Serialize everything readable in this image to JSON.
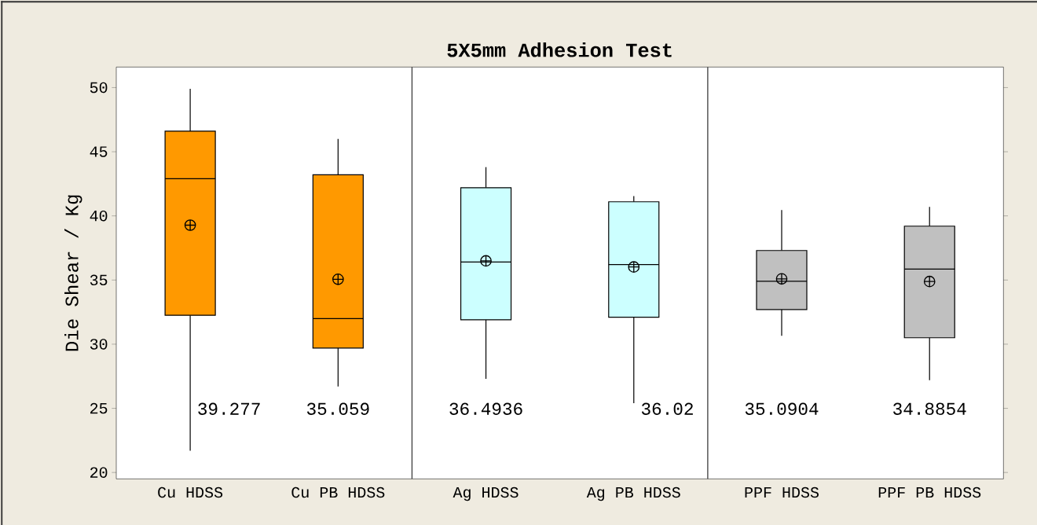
{
  "chart_data": {
    "type": "box",
    "title": "5X5mm Adhesion Test",
    "ylabel": "Die Shear / Kg",
    "categories": [
      "Cu HDSS",
      "Cu PB HDSS",
      "Ag HDSS",
      "Ag PB HDSS",
      "PPF HDSS",
      "PPF PB HDSS"
    ],
    "boxes": [
      {
        "low": 21.7,
        "q1": 32.25,
        "median": 42.9,
        "q3": 46.6,
        "high": 49.9,
        "mean": 39.277
      },
      {
        "low": 26.7,
        "q1": 29.7,
        "median": 32.0,
        "q3": 43.2,
        "high": 46.0,
        "mean": 35.059
      },
      {
        "low": 27.3,
        "q1": 31.9,
        "median": 36.4,
        "q3": 42.2,
        "high": 43.8,
        "mean": 36.4936
      },
      {
        "low": 25.4,
        "q1": 32.1,
        "median": 36.2,
        "q3": 41.1,
        "high": 41.55,
        "mean": 36.02
      },
      {
        "low": 30.65,
        "q1": 32.7,
        "median": 34.9,
        "q3": 37.3,
        "high": 40.45,
        "mean": 35.0904
      },
      {
        "low": 27.2,
        "q1": 30.5,
        "median": 35.85,
        "q3": 39.2,
        "high": 40.7,
        "mean": 34.8854
      }
    ],
    "colors": [
      "#ff9900",
      "#ff9900",
      "#ccffff",
      "#ccffff",
      "#c0c0c0",
      "#c0c0c0"
    ],
    "marker": "circle",
    "ylim": [
      19.5,
      51.6
    ],
    "yticks": [
      20,
      25,
      30,
      35,
      40,
      45,
      50
    ],
    "annotations": [
      "39.277",
      "35.059",
      "36.4936",
      "36.02",
      "35.0904",
      "34.8854"
    ],
    "grid": false
  }
}
